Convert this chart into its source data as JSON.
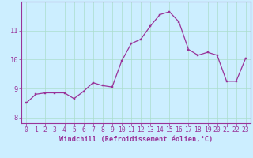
{
  "x": [
    0,
    1,
    2,
    3,
    4,
    5,
    6,
    7,
    8,
    9,
    10,
    11,
    12,
    13,
    14,
    15,
    16,
    17,
    18,
    19,
    20,
    21,
    22,
    23
  ],
  "y": [
    8.5,
    8.8,
    8.85,
    8.85,
    8.85,
    8.65,
    8.9,
    9.2,
    9.1,
    9.05,
    9.95,
    10.55,
    10.7,
    11.15,
    11.55,
    11.65,
    11.3,
    10.35,
    10.15,
    10.25,
    10.15,
    9.25,
    9.25,
    10.05
  ],
  "bg_color": "#cceeff",
  "line_color": "#993399",
  "marker_color": "#993399",
  "grid_color": "#aaddcc",
  "axis_color": "#993399",
  "xlabel": "Windchill (Refroidissement éolien,°C)",
  "ylim": [
    7.8,
    12.0
  ],
  "xlim": [
    -0.5,
    23.5
  ],
  "yticks": [
    8,
    9,
    10,
    11
  ],
  "xticks": [
    0,
    1,
    2,
    3,
    4,
    5,
    6,
    7,
    8,
    9,
    10,
    11,
    12,
    13,
    14,
    15,
    16,
    17,
    18,
    19,
    20,
    21,
    22,
    23
  ],
  "label_fontsize": 6.2,
  "tick_fontsize": 5.8
}
